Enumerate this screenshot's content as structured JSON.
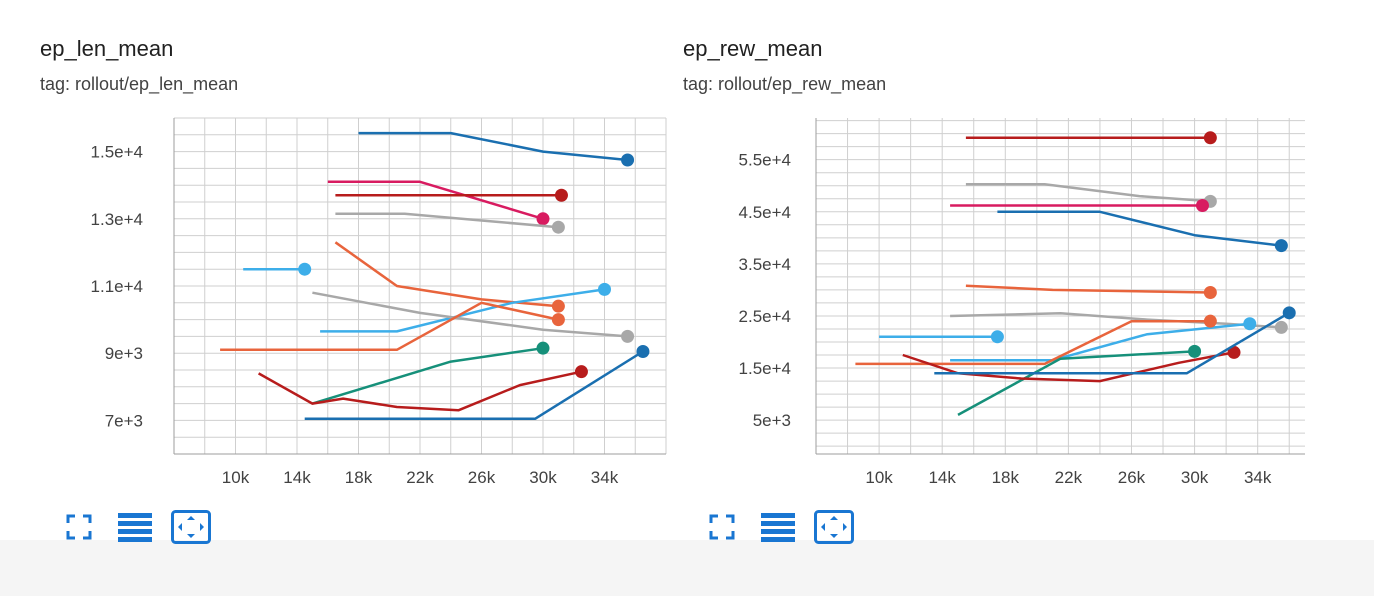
{
  "colors": {
    "accent": "#1976d2",
    "grid": "#cfcfcf"
  },
  "toolbar": {
    "icons": [
      "fullscreen-icon",
      "toggle-log-scale-icon",
      "fit-domain-icon"
    ]
  },
  "charts": [
    {
      "title": "ep_len_mean",
      "tag": "tag: rollout/ep_len_mean"
    },
    {
      "title": "ep_rew_mean",
      "tag": "tag: rollout/ep_rew_mean"
    }
  ],
  "chart_data": [
    {
      "type": "line",
      "title": "ep_len_mean",
      "subtitle": "tag: rollout/ep_len_mean",
      "grid": true,
      "xlim": [
        6000,
        38000
      ],
      "ylim": [
        6000,
        16000
      ],
      "x_ticks": [
        10000,
        14000,
        18000,
        22000,
        26000,
        30000,
        34000
      ],
      "x_tick_labels": [
        "10k",
        "14k",
        "18k",
        "22k",
        "26k",
        "30k",
        "34k"
      ],
      "y_ticks": [
        7000,
        9000,
        11000,
        13000,
        15000
      ],
      "y_tick_labels": [
        "7e+3",
        "9e+3",
        "1.1e+4",
        "1.3e+4",
        "1.5e+4"
      ],
      "series": [
        {
          "color": "#1a6fb0",
          "x": [
            18000,
            24000,
            30000,
            35500
          ],
          "y": [
            15550,
            15550,
            15000,
            14750
          ]
        },
        {
          "color": "#d81b60",
          "x": [
            16000,
            22000,
            30000
          ],
          "y": [
            14100,
            14100,
            13000
          ]
        },
        {
          "color": "#b71c1c",
          "x": [
            16500,
            31200
          ],
          "y": [
            13700,
            13700
          ]
        },
        {
          "color": "#a8a8a8",
          "x": [
            16500,
            21000,
            26000,
            31000
          ],
          "y": [
            13150,
            13150,
            12950,
            12750
          ]
        },
        {
          "color": "#e8643c",
          "x": [
            16500,
            20500,
            26000,
            31000
          ],
          "y": [
            12300,
            11000,
            10600,
            10400
          ]
        },
        {
          "color": "#3daee9",
          "x": [
            10500,
            14500
          ],
          "y": [
            11500,
            11500
          ]
        },
        {
          "color": "#3daee9",
          "x": [
            15500,
            20500,
            28000,
            34000
          ],
          "y": [
            9650,
            9650,
            10500,
            10900
          ]
        },
        {
          "color": "#a8a8a8",
          "x": [
            15000,
            22000,
            30000,
            35500
          ],
          "y": [
            10800,
            10200,
            9700,
            9500
          ]
        },
        {
          "color": "#e8643c",
          "x": [
            9000,
            20500,
            26000,
            31000
          ],
          "y": [
            9100,
            9100,
            10500,
            10000
          ]
        },
        {
          "color": "#16907a",
          "x": [
            15000,
            24000,
            30000
          ],
          "y": [
            7500,
            8750,
            9150
          ]
        },
        {
          "color": "#b71c1c",
          "x": [
            11500,
            15000,
            17000,
            20500,
            24500,
            28500,
            32500
          ],
          "y": [
            8400,
            7500,
            7650,
            7400,
            7300,
            8050,
            8450
          ]
        },
        {
          "color": "#1a6fb0",
          "x": [
            14500,
            29500,
            36500
          ],
          "y": [
            7050,
            7050,
            9050
          ]
        }
      ]
    },
    {
      "type": "line",
      "title": "ep_rew_mean",
      "subtitle": "tag: rollout/ep_rew_mean",
      "grid": true,
      "xlim": [
        6000,
        37000
      ],
      "ylim": [
        -1500,
        63000
      ],
      "x_ticks": [
        10000,
        14000,
        18000,
        22000,
        26000,
        30000,
        34000
      ],
      "x_tick_labels": [
        "10k",
        "14k",
        "18k",
        "22k",
        "26k",
        "30k",
        "34k"
      ],
      "y_ticks": [
        5000,
        15000,
        25000,
        35000,
        45000,
        55000
      ],
      "y_tick_labels": [
        "5e+3",
        "1.5e+4",
        "2.5e+4",
        "3.5e+4",
        "4.5e+4",
        "5.5e+4"
      ],
      "series": [
        {
          "color": "#b71c1c",
          "x": [
            15500,
            31000
          ],
          "y": [
            59200,
            59200
          ]
        },
        {
          "color": "#a8a8a8",
          "x": [
            15500,
            20500,
            26500,
            31000
          ],
          "y": [
            50300,
            50300,
            48000,
            47000
          ]
        },
        {
          "color": "#d81b60",
          "x": [
            14500,
            30500
          ],
          "y": [
            46200,
            46200
          ]
        },
        {
          "color": "#1a6fb0",
          "x": [
            17500,
            24000,
            30000,
            35500
          ],
          "y": [
            45000,
            45000,
            40500,
            38500
          ]
        },
        {
          "color": "#e8643c",
          "x": [
            15500,
            21000,
            31000
          ],
          "y": [
            30800,
            30000,
            29500
          ]
        },
        {
          "color": "#a8a8a8",
          "x": [
            14500,
            21500,
            27000,
            32000,
            35500
          ],
          "y": [
            25000,
            25500,
            24300,
            23500,
            22800
          ]
        },
        {
          "color": "#3daee9",
          "x": [
            10000,
            17500
          ],
          "y": [
            21000,
            21000
          ]
        },
        {
          "color": "#3daee9",
          "x": [
            14500,
            21000,
            27000,
            33500
          ],
          "y": [
            16500,
            16500,
            21500,
            23500
          ]
        },
        {
          "color": "#e8643c",
          "x": [
            8500,
            20500,
            26000,
            31000
          ],
          "y": [
            15800,
            15800,
            24000,
            24000
          ]
        },
        {
          "color": "#16907a",
          "x": [
            15000,
            21500,
            30000
          ],
          "y": [
            6000,
            16800,
            18200
          ]
        },
        {
          "color": "#b71c1c",
          "x": [
            11500,
            15000,
            19000,
            24000,
            29000,
            32500
          ],
          "y": [
            17500,
            14000,
            13000,
            12500,
            16000,
            18000
          ]
        },
        {
          "color": "#1a6fb0",
          "x": [
            13500,
            29500,
            36000
          ],
          "y": [
            14000,
            14000,
            25600
          ]
        }
      ]
    }
  ]
}
